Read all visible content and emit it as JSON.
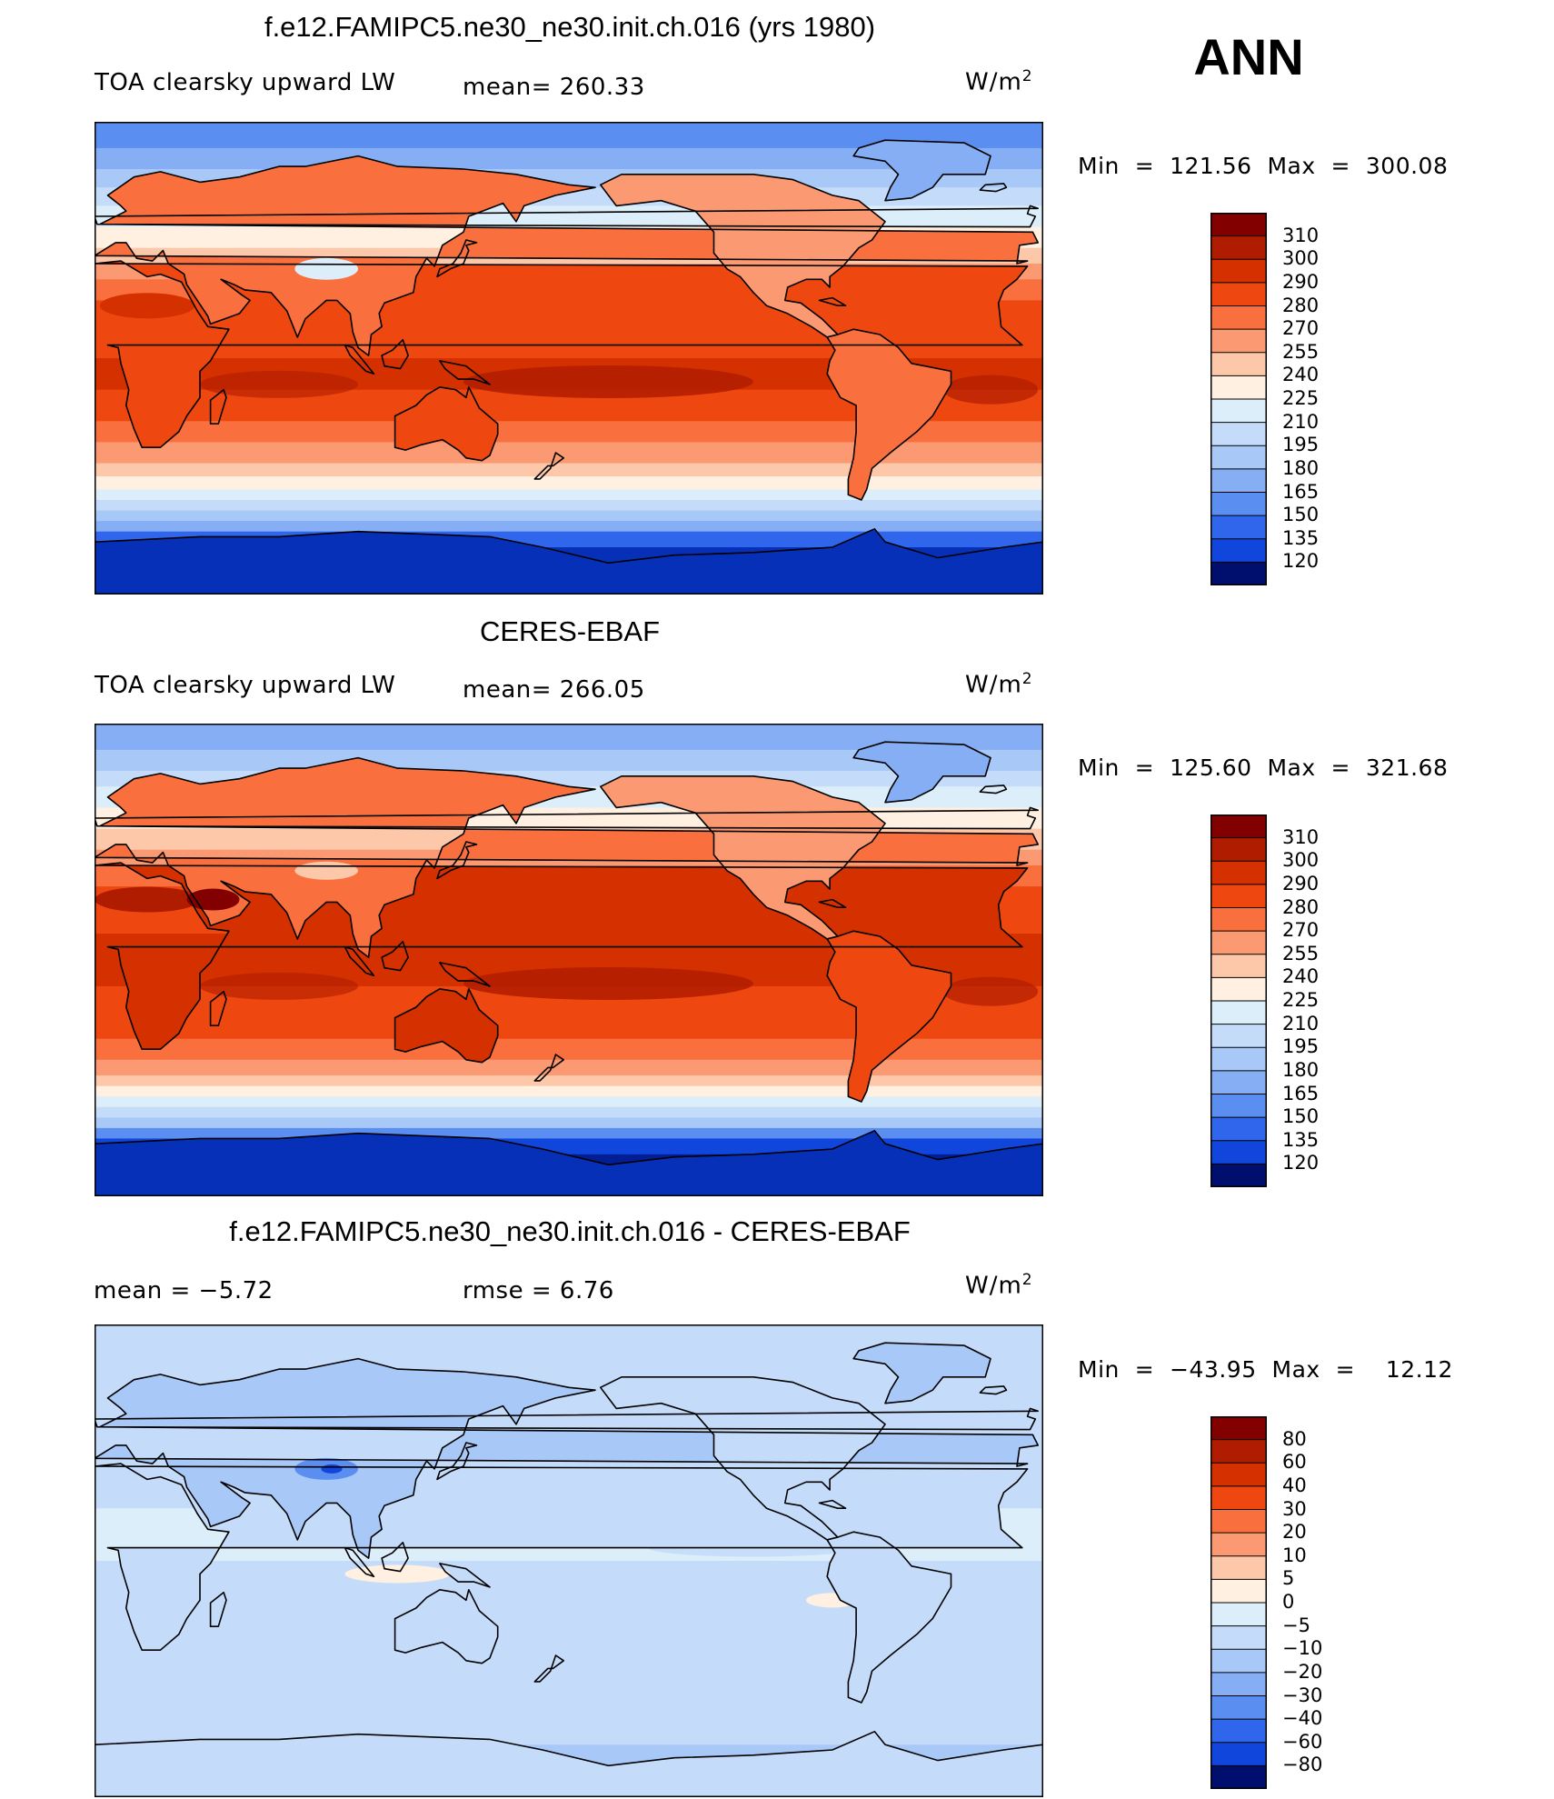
{
  "season": "ANN",
  "colors": {
    "warm": [
      "#830000",
      "#b01c00",
      "#d43000",
      "#ee4810",
      "#f9703e",
      "#fb9a72",
      "#fdc8aa",
      "#fff0e1"
    ],
    "cool": [
      "#ddeefb",
      "#c4dcfa",
      "#a8c8f8",
      "#85aef5",
      "#5a8ef0",
      "#2f66ec",
      "#1046dc",
      "#0630b8",
      "#031d95",
      "#000f6e"
    ]
  },
  "panels": [
    {
      "title": "f.e12.FAMIPC5.ne30_ne30.init.ch.016 (yrs 1980)",
      "subtitle_left": "TOA clearsky upward LW",
      "subtitle_mid": "mean= 260.33",
      "unit": "W/m",
      "unit_sup": "2",
      "minmax": "Min  =  121.56  Max  =  300.08",
      "map_type": "abs_model",
      "colorbar_labels": [
        "310",
        "300",
        "290",
        "280",
        "270",
        "255",
        "240",
        "225",
        "210",
        "195",
        "180",
        "165",
        "150",
        "135",
        "120"
      ]
    },
    {
      "title": "CERES-EBAF",
      "subtitle_left": "TOA clearsky upward LW",
      "subtitle_mid": "mean= 266.05",
      "unit": "W/m",
      "unit_sup": "2",
      "minmax": "Min  =  125.60  Max  =  321.68",
      "map_type": "abs_obs",
      "colorbar_labels": [
        "310",
        "300",
        "290",
        "280",
        "270",
        "255",
        "240",
        "225",
        "210",
        "195",
        "180",
        "165",
        "150",
        "135",
        "120"
      ]
    },
    {
      "title": "f.e12.FAMIPC5.ne30_ne30.init.ch.016 - CERES-EBAF",
      "subtitle_left": "mean  =    −5.72",
      "subtitle_mid": "rmse  =     6.76",
      "unit": "W/m",
      "unit_sup": "2",
      "minmax": "Min  =  −43.95  Max  =    12.12",
      "map_type": "diff",
      "colorbar_labels": [
        "80",
        "60",
        "40",
        "30",
        "20",
        "10",
        "5",
        "0",
        "−5",
        "−10",
        "−20",
        "−30",
        "−40",
        "−60",
        "−80"
      ]
    }
  ]
}
